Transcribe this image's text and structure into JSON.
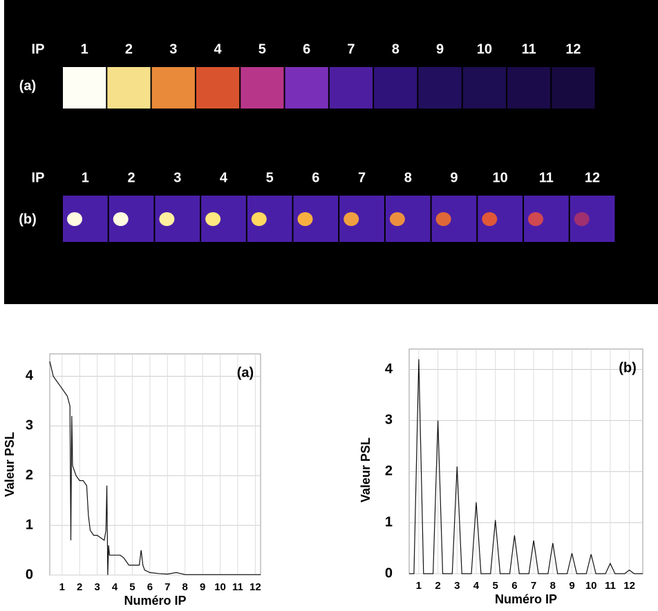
{
  "top_panel": {
    "rows": [
      {
        "header": "IP",
        "label": "(a)",
        "numbers": [
          "1",
          "2",
          "3",
          "4",
          "5",
          "6",
          "7",
          "8",
          "9",
          "10",
          "11",
          "12"
        ],
        "plate_colors": [
          "#fffef5",
          "#f6e08a",
          "#e98a3a",
          "#d9542e",
          "#b8368a",
          "#7a2fb8",
          "#4d1fa0",
          "#30137a",
          "#22105e",
          "#1d0d52",
          "#1b0b4a",
          "#170a40"
        ]
      },
      {
        "header": "IP",
        "label": "(b)",
        "numbers": [
          "1",
          "2",
          "3",
          "4",
          "5",
          "6",
          "7",
          "8",
          "9",
          "10",
          "11",
          "12"
        ],
        "plate_colors": [
          "#4a1fa8",
          "#4a1fa8",
          "#4a1fa8",
          "#4a1fa8",
          "#4a1fa8",
          "#4a1fa8",
          "#4a1fa8",
          "#4a1fa8",
          "#4a1fa8",
          "#4a1fa8",
          "#4a1fa8",
          "#4a1fa8"
        ],
        "spot_colors": [
          "#fffbe0",
          "#fffbe0",
          "#fff0a0",
          "#ffe880",
          "#ffd860",
          "#f7b040",
          "#f0a040",
          "#ec9040",
          "#e06838",
          "#e05838",
          "#d04850",
          "#a03070"
        ]
      }
    ]
  },
  "chart_data": [
    {
      "type": "line",
      "annotation": "(a)",
      "x_label": "Numéro IP",
      "y_label": "Valeur PSL",
      "color": "#111111",
      "grid": true,
      "x": [
        0.3,
        0.5,
        0.7,
        0.9,
        1.1,
        1.3,
        1.45,
        1.5,
        1.55,
        1.6,
        1.8,
        2.0,
        2.2,
        2.4,
        2.5,
        2.6,
        2.8,
        3.0,
        3.2,
        3.4,
        3.5,
        3.55,
        3.6,
        3.65,
        3.7,
        3.9,
        4.1,
        4.3,
        4.5,
        4.6,
        4.8,
        5.0,
        5.2,
        5.4,
        5.5,
        5.6,
        5.7,
        6.0,
        6.5,
        7.0,
        7.5,
        8,
        9,
        10,
        11,
        12.3
      ],
      "values": [
        4.3,
        4.0,
        3.9,
        3.8,
        3.7,
        3.6,
        3.4,
        0.7,
        3.2,
        2.2,
        2.0,
        1.9,
        1.9,
        1.8,
        1.2,
        0.9,
        0.8,
        0.8,
        0.75,
        0.7,
        0.9,
        1.8,
        0.0,
        0.6,
        0.4,
        0.4,
        0.4,
        0.4,
        0.35,
        0.3,
        0.2,
        0.2,
        0.2,
        0.2,
        0.5,
        0.2,
        0.1,
        0.05,
        0.03,
        0.02,
        0.05,
        0.01,
        0.01,
        0.01,
        0.01,
        0.01
      ],
      "xlim": [
        0.3,
        12.3
      ],
      "ylim": [
        0,
        4.45
      ],
      "xticks": [
        1,
        2,
        3,
        4,
        5,
        6,
        7,
        8,
        9,
        10,
        11,
        12
      ],
      "yticks": [
        0,
        1,
        2,
        3,
        4
      ]
    },
    {
      "type": "line",
      "annotation": "(b)",
      "x_label": "Numéro IP",
      "y_label": "Valeur PSL",
      "color": "#111111",
      "grid": true,
      "x": [
        0.5,
        0.75,
        1,
        1.25,
        1.75,
        2,
        2.25,
        2.75,
        3,
        3.25,
        3.75,
        4,
        4.25,
        4.75,
        5,
        5.25,
        5.75,
        6,
        6.25,
        6.75,
        7,
        7.25,
        7.75,
        8,
        8.25,
        8.75,
        9,
        9.25,
        9.75,
        10,
        10.25,
        10.75,
        11,
        11.25,
        11.75,
        12,
        12.25,
        12.7
      ],
      "values": [
        0,
        0,
        4.2,
        0,
        0,
        3.0,
        0,
        0,
        2.1,
        0,
        0,
        1.4,
        0,
        0,
        1.05,
        0,
        0,
        0.75,
        0,
        0,
        0.65,
        0,
        0,
        0.6,
        0,
        0,
        0.4,
        0,
        0,
        0.38,
        0,
        0,
        0.2,
        0,
        0,
        0.07,
        0,
        0
      ],
      "xlim": [
        0.5,
        12.7
      ],
      "ylim": [
        0,
        4.4
      ],
      "xticks": [
        1,
        2,
        3,
        4,
        5,
        6,
        7,
        8,
        9,
        10,
        11,
        12
      ],
      "yticks": [
        0,
        1,
        2,
        3,
        4
      ]
    }
  ]
}
